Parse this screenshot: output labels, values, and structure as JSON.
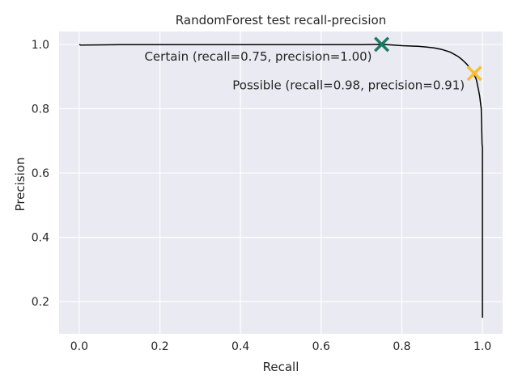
{
  "chart_data": {
    "type": "line",
    "title": "RandomForest test recall-precision",
    "xlabel": "Recall",
    "ylabel": "Precision",
    "xlim": [
      -0.05,
      1.05
    ],
    "ylim": [
      0.1,
      1.04
    ],
    "xticks": [
      0.0,
      0.2,
      0.4,
      0.6,
      0.8,
      1.0
    ],
    "xtick_labels": [
      "0.0",
      "0.2",
      "0.4",
      "0.6",
      "0.8",
      "1.0"
    ],
    "yticks": [
      0.2,
      0.4,
      0.6,
      0.8,
      1.0
    ],
    "ytick_labels": [
      "0.2",
      "0.4",
      "0.6",
      "0.8",
      "1.0"
    ],
    "grid": true,
    "background": "#eaeaf2",
    "series": [
      {
        "color": "#000000",
        "x": [
          0.0,
          0.003,
          0.1,
          0.2,
          0.3,
          0.4,
          0.5,
          0.6,
          0.7,
          0.75,
          0.78,
          0.8,
          0.82,
          0.84,
          0.86,
          0.88,
          0.9,
          0.92,
          0.94,
          0.95,
          0.96,
          0.97,
          0.975,
          0.98,
          0.985,
          0.99,
          0.993,
          0.995,
          0.997,
          0.998,
          0.999,
          1.0,
          1.0,
          1.0
        ],
        "y": [
          1.0,
          0.998,
          0.999,
          0.999,
          0.999,
          0.999,
          0.999,
          0.999,
          0.999,
          1.0,
          0.998,
          0.996,
          0.995,
          0.994,
          0.992,
          0.989,
          0.984,
          0.976,
          0.962,
          0.952,
          0.94,
          0.925,
          0.915,
          0.905,
          0.89,
          0.86,
          0.84,
          0.82,
          0.8,
          0.75,
          0.69,
          0.68,
          0.3,
          0.15
        ]
      }
    ],
    "markers": [
      {
        "label": "Certain (recall=0.75, precision=1.00)",
        "x": 0.75,
        "y": 1.0,
        "color": "#1b7a63"
      },
      {
        "label": "Possible (recall=0.98, precision=0.91)",
        "x": 0.98,
        "y": 0.91,
        "color": "#f8be2d"
      }
    ]
  }
}
